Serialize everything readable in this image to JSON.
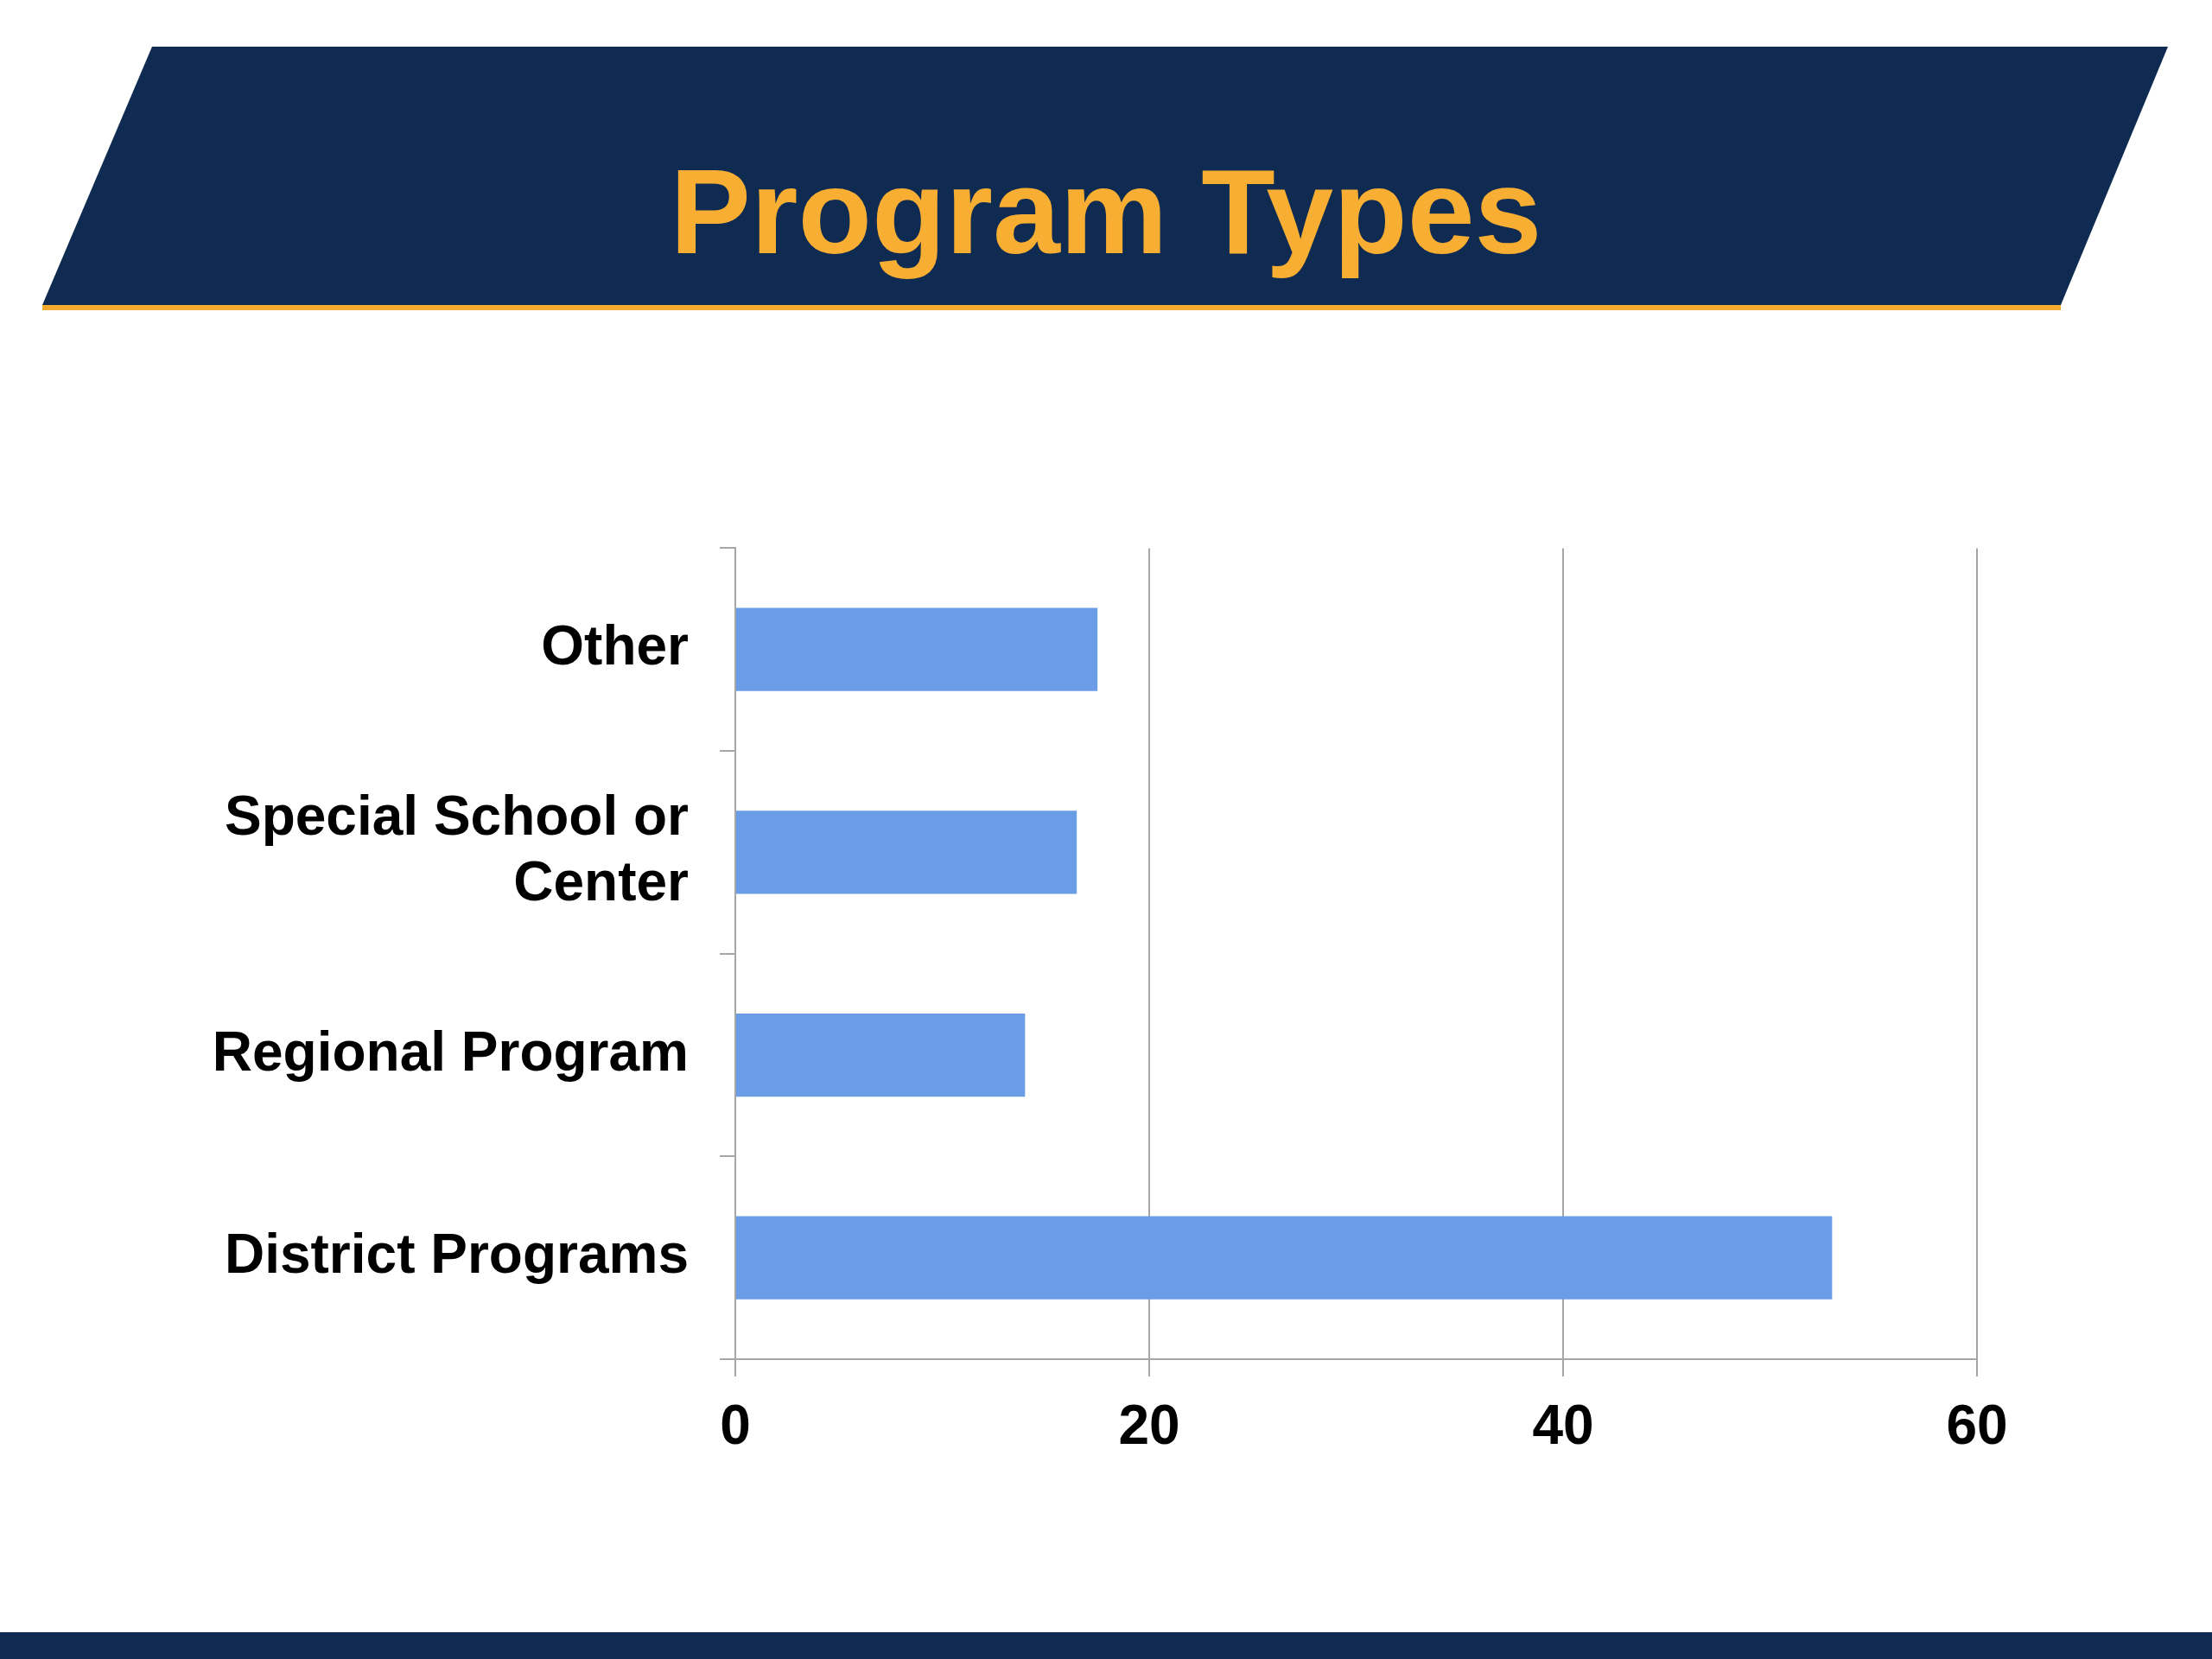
{
  "chart_data": {
    "type": "bar",
    "orientation": "horizontal",
    "title": "Program Types",
    "categories": [
      "Other",
      "Special School or Center",
      "Regional Program",
      "District Programs"
    ],
    "values": [
      17.5,
      16.5,
      14,
      53
    ],
    "color": "#6a9de6",
    "xlim": [
      0,
      60
    ],
    "xticks": [
      0,
      20,
      40,
      60
    ],
    "grid": "x",
    "legend": false
  }
}
